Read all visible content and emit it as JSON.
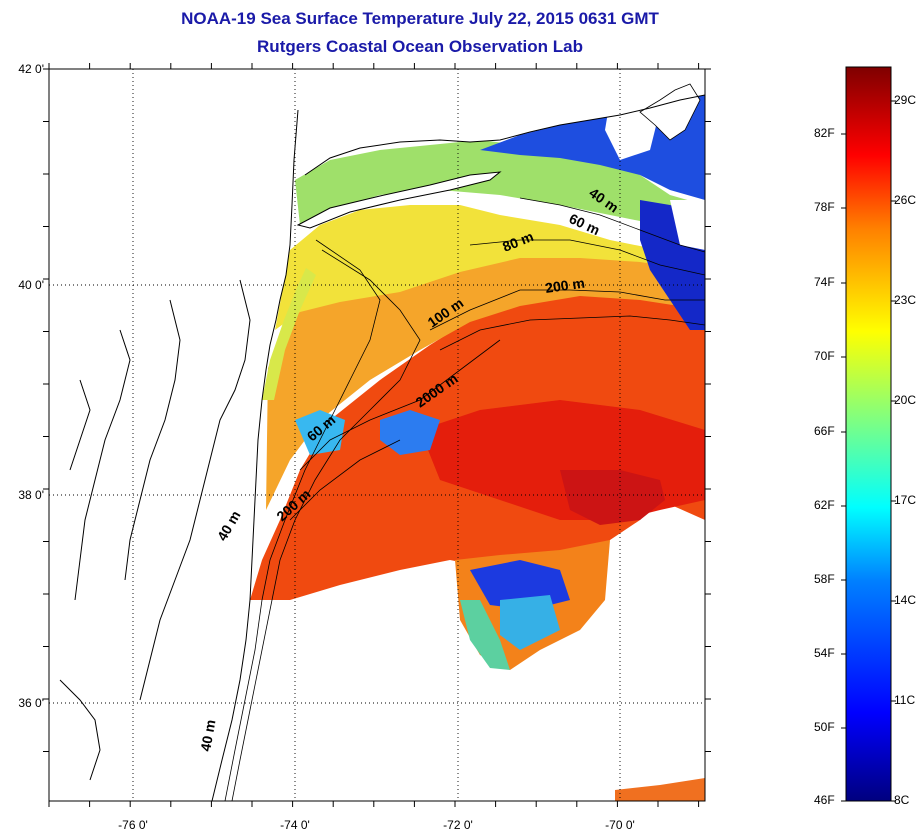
{
  "title": {
    "line1": "NOAA-19 Sea Surface Temperature July 22, 2015 0631 GMT",
    "line2": "Rutgers Coastal Ocean Observation Lab"
  },
  "map": {
    "lat_ticks": [
      "42 0'",
      "40 0'",
      "38 0'",
      "36 0'"
    ],
    "lon_ticks": [
      "-76 0'",
      "-74 0'",
      "-72 0'",
      "-70 0'"
    ],
    "contour_labels": [
      "40 m",
      "60 m",
      "80 m",
      "200 m",
      "100 m",
      "2000 m",
      "60 m",
      "200 m",
      "40 m",
      "40 m"
    ]
  },
  "colorbar": {
    "fahrenheit": [
      "82F",
      "78F",
      "74F",
      "70F",
      "66F",
      "62F",
      "58F",
      "54F",
      "50F",
      "46F"
    ],
    "celsius": [
      "29C",
      "26C",
      "23C",
      "20C",
      "17C",
      "14C",
      "11C",
      "8C"
    ],
    "colors": [
      "#00007f",
      "#0000ff",
      "#0080ff",
      "#00ffff",
      "#80ff80",
      "#ffff00",
      "#ff8000",
      "#ff0000",
      "#7f0000"
    ]
  }
}
